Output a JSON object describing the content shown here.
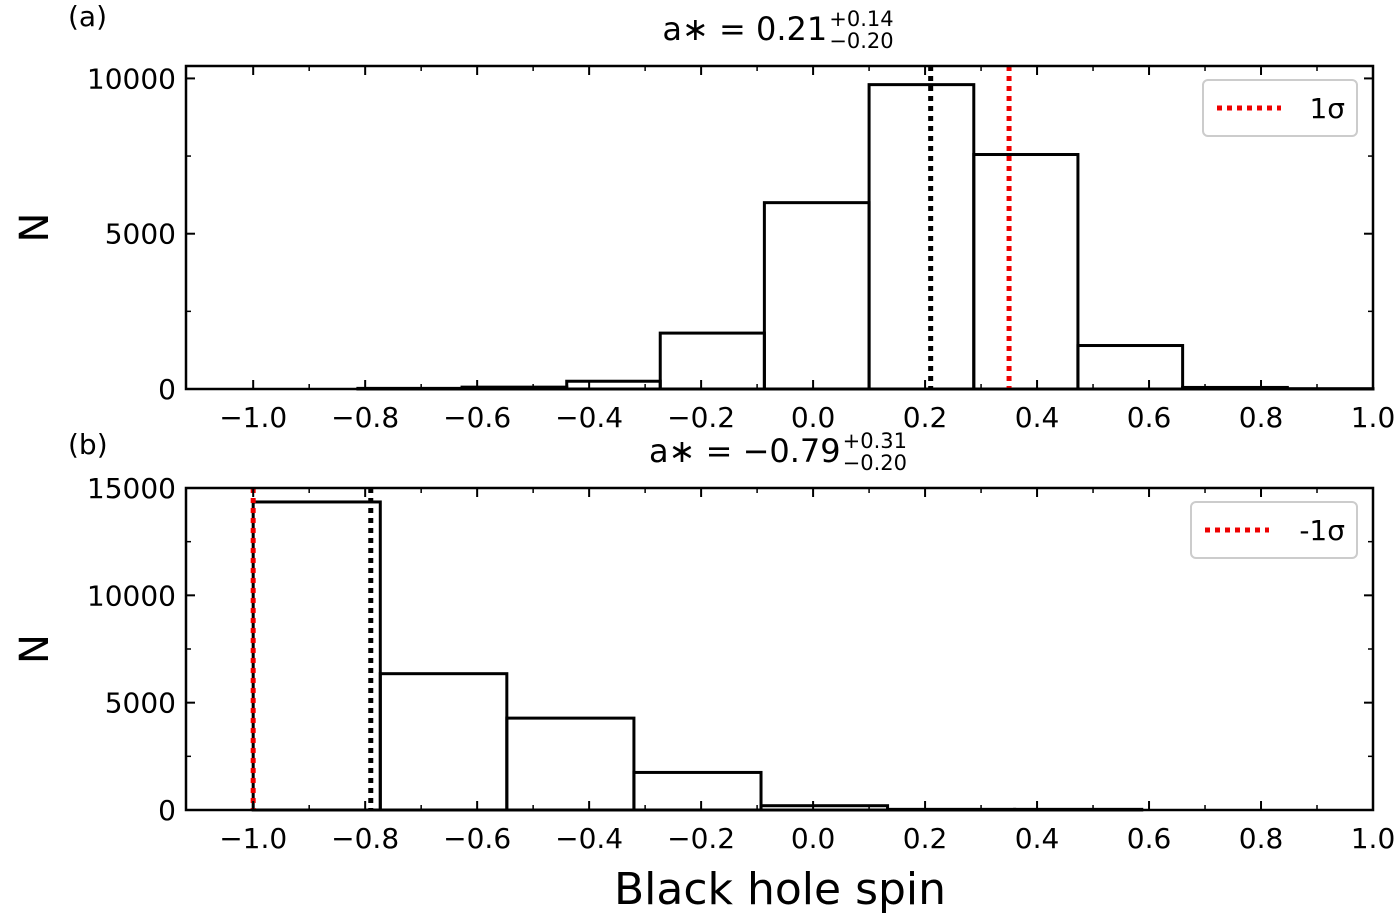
{
  "figure": {
    "xlabel": "Black hole spin"
  },
  "chart_data": [
    {
      "type": "bar",
      "panel_label": "(a)",
      "title": {
        "prefix": "a∗ = ",
        "value": "0.21",
        "upper": "+0.14",
        "lower": "−0.20"
      },
      "ylabel": "N",
      "xlim": [
        -1.12,
        1.0
      ],
      "ylim": [
        0,
        10400
      ],
      "xticks": [
        -1.0,
        -0.8,
        -0.6,
        -0.4,
        -0.2,
        0.0,
        0.2,
        0.4,
        0.6,
        0.8,
        1.0
      ],
      "xtick_labels": [
        "−1.0",
        "−0.8",
        "−0.6",
        "−0.4",
        "−0.2",
        "0.0",
        "0.2",
        "0.4",
        "0.6",
        "0.8",
        "1.0"
      ],
      "yticks": [
        0,
        5000,
        10000
      ],
      "ytick_labels": [
        "0",
        "5000",
        "10000"
      ],
      "bin_edges": [
        -1.0,
        -0.813,
        -0.627,
        -0.44,
        -0.273,
        -0.087,
        0.1,
        0.287,
        0.473,
        0.66,
        0.847,
        1.0
      ],
      "values": [
        0,
        20,
        60,
        250,
        1800,
        6000,
        9800,
        7550,
        1400,
        50,
        10
      ],
      "lines": [
        {
          "x": 0.21,
          "color": "#000000",
          "style": "dotted"
        },
        {
          "x": 0.35,
          "color": "#ee0000",
          "style": "dotted"
        }
      ],
      "legend": {
        "label": "1σ",
        "color": "#ee0000",
        "position": "top-right"
      },
      "grid": false
    },
    {
      "type": "bar",
      "panel_label": "(b)",
      "title": {
        "prefix": "a∗ = ",
        "value": "−0.79",
        "upper": "+0.31",
        "lower": "−0.20"
      },
      "ylabel": "N",
      "xlim": [
        -1.12,
        1.0
      ],
      "ylim": [
        0,
        15000
      ],
      "xticks": [
        -1.0,
        -0.8,
        -0.6,
        -0.4,
        -0.2,
        0.0,
        0.2,
        0.4,
        0.6,
        0.8,
        1.0
      ],
      "xtick_labels": [
        "−1.0",
        "−0.8",
        "−0.6",
        "−0.4",
        "−0.2",
        "0.0",
        "0.2",
        "0.4",
        "0.6",
        "0.8",
        "1.0"
      ],
      "yticks": [
        0,
        5000,
        10000,
        15000
      ],
      "ytick_labels": [
        "0",
        "5000",
        "10000",
        "15000"
      ],
      "bin_edges": [
        -1.0,
        -0.773,
        -0.547,
        -0.32,
        -0.093,
        0.133,
        0.36,
        0.587,
        0.813,
        1.0
      ],
      "values": [
        14350,
        6350,
        4280,
        1750,
        200,
        30,
        30,
        0,
        0
      ],
      "lines": [
        {
          "x": -0.79,
          "color": "#000000",
          "style": "dotted"
        },
        {
          "x": -1.0,
          "color": "#ee0000",
          "style": "dotted"
        }
      ],
      "legend": {
        "label": "-1σ",
        "color": "#ee0000",
        "position": "top-right"
      },
      "grid": false
    }
  ]
}
